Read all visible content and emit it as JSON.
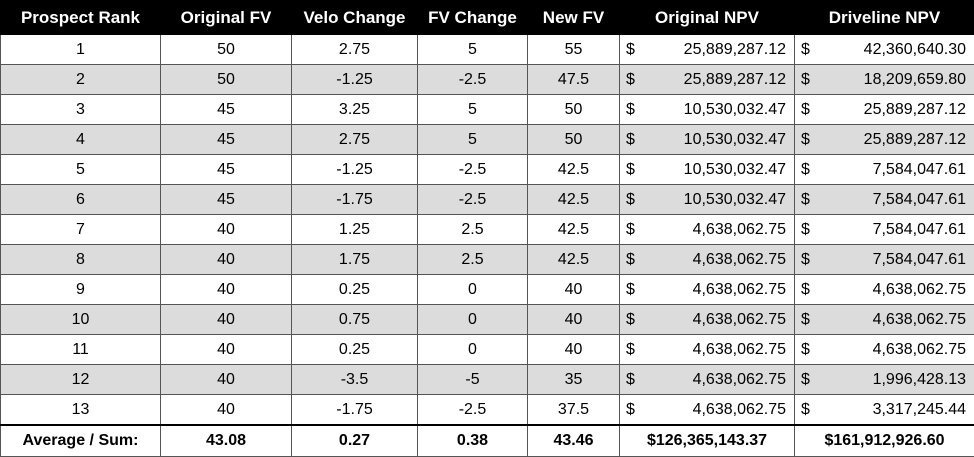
{
  "headers": [
    "Prospect Rank",
    "Original FV",
    "Velo Change",
    "FV Change",
    "New FV",
    "Original NPV",
    "Driveline NPV"
  ],
  "currency_symbol": "$",
  "rows": [
    {
      "rank": "1",
      "orig_fv": "50",
      "velo": "2.75",
      "fv_change": "5",
      "new_fv": "55",
      "orig_npv": "25,889,287.12",
      "driveline_npv": "42,360,640.30"
    },
    {
      "rank": "2",
      "orig_fv": "50",
      "velo": "-1.25",
      "fv_change": "-2.5",
      "new_fv": "47.5",
      "orig_npv": "25,889,287.12",
      "driveline_npv": "18,209,659.80"
    },
    {
      "rank": "3",
      "orig_fv": "45",
      "velo": "3.25",
      "fv_change": "5",
      "new_fv": "50",
      "orig_npv": "10,530,032.47",
      "driveline_npv": "25,889,287.12"
    },
    {
      "rank": "4",
      "orig_fv": "45",
      "velo": "2.75",
      "fv_change": "5",
      "new_fv": "50",
      "orig_npv": "10,530,032.47",
      "driveline_npv": "25,889,287.12"
    },
    {
      "rank": "5",
      "orig_fv": "45",
      "velo": "-1.25",
      "fv_change": "-2.5",
      "new_fv": "42.5",
      "orig_npv": "10,530,032.47",
      "driveline_npv": "7,584,047.61"
    },
    {
      "rank": "6",
      "orig_fv": "45",
      "velo": "-1.75",
      "fv_change": "-2.5",
      "new_fv": "42.5",
      "orig_npv": "10,530,032.47",
      "driveline_npv": "7,584,047.61"
    },
    {
      "rank": "7",
      "orig_fv": "40",
      "velo": "1.25",
      "fv_change": "2.5",
      "new_fv": "42.5",
      "orig_npv": "4,638,062.75",
      "driveline_npv": "7,584,047.61"
    },
    {
      "rank": "8",
      "orig_fv": "40",
      "velo": "1.75",
      "fv_change": "2.5",
      "new_fv": "42.5",
      "orig_npv": "4,638,062.75",
      "driveline_npv": "7,584,047.61"
    },
    {
      "rank": "9",
      "orig_fv": "40",
      "velo": "0.25",
      "fv_change": "0",
      "new_fv": "40",
      "orig_npv": "4,638,062.75",
      "driveline_npv": "4,638,062.75"
    },
    {
      "rank": "10",
      "orig_fv": "40",
      "velo": "0.75",
      "fv_change": "0",
      "new_fv": "40",
      "orig_npv": "4,638,062.75",
      "driveline_npv": "4,638,062.75"
    },
    {
      "rank": "11",
      "orig_fv": "40",
      "velo": "0.25",
      "fv_change": "0",
      "new_fv": "40",
      "orig_npv": "4,638,062.75",
      "driveline_npv": "4,638,062.75"
    },
    {
      "rank": "12",
      "orig_fv": "40",
      "velo": "-3.5",
      "fv_change": "-5",
      "new_fv": "35",
      "orig_npv": "4,638,062.75",
      "driveline_npv": "1,996,428.13"
    },
    {
      "rank": "13",
      "orig_fv": "40",
      "velo": "-1.75",
      "fv_change": "-2.5",
      "new_fv": "37.5",
      "orig_npv": "4,638,062.75",
      "driveline_npv": "3,317,245.44"
    }
  ],
  "footer": {
    "label": "Average / Sum:",
    "orig_fv": "43.08",
    "velo": "0.27",
    "fv_change": "0.38",
    "new_fv": "43.46",
    "orig_npv": "$126,365,143.37",
    "driveline_npv": "$161,912,926.60"
  },
  "colors": {
    "header_bg": "#000000",
    "header_text": "#ffffff",
    "alt_row_bg": "#dcdcdc",
    "row_bg": "#ffffff",
    "border": "#555555"
  }
}
